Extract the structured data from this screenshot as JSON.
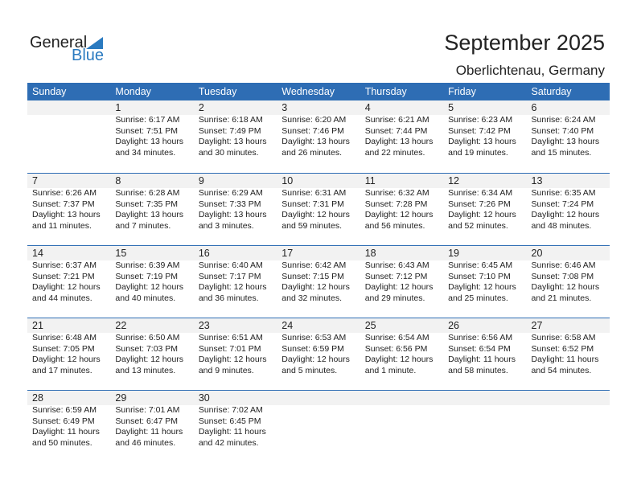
{
  "logo": {
    "general": "General",
    "blue": "Blue"
  },
  "header": {
    "title": "September 2025",
    "location": "Oberlichtenau, Germany"
  },
  "weekdays": [
    "Sunday",
    "Monday",
    "Tuesday",
    "Wednesday",
    "Thursday",
    "Friday",
    "Saturday"
  ],
  "colors": {
    "header_bg": "#2e6db4",
    "brand_blue": "#2a7ac0",
    "date_band": "#f2f2f2"
  },
  "weeks": [
    [
      null,
      {
        "day": "1",
        "sunrise": "Sunrise: 6:17 AM",
        "sunset": "Sunset: 7:51 PM",
        "daylight1": "Daylight: 13 hours",
        "daylight2": "and 34 minutes."
      },
      {
        "day": "2",
        "sunrise": "Sunrise: 6:18 AM",
        "sunset": "Sunset: 7:49 PM",
        "daylight1": "Daylight: 13 hours",
        "daylight2": "and 30 minutes."
      },
      {
        "day": "3",
        "sunrise": "Sunrise: 6:20 AM",
        "sunset": "Sunset: 7:46 PM",
        "daylight1": "Daylight: 13 hours",
        "daylight2": "and 26 minutes."
      },
      {
        "day": "4",
        "sunrise": "Sunrise: 6:21 AM",
        "sunset": "Sunset: 7:44 PM",
        "daylight1": "Daylight: 13 hours",
        "daylight2": "and 22 minutes."
      },
      {
        "day": "5",
        "sunrise": "Sunrise: 6:23 AM",
        "sunset": "Sunset: 7:42 PM",
        "daylight1": "Daylight: 13 hours",
        "daylight2": "and 19 minutes."
      },
      {
        "day": "6",
        "sunrise": "Sunrise: 6:24 AM",
        "sunset": "Sunset: 7:40 PM",
        "daylight1": "Daylight: 13 hours",
        "daylight2": "and 15 minutes."
      }
    ],
    [
      {
        "day": "7",
        "sunrise": "Sunrise: 6:26 AM",
        "sunset": "Sunset: 7:37 PM",
        "daylight1": "Daylight: 13 hours",
        "daylight2": "and 11 minutes."
      },
      {
        "day": "8",
        "sunrise": "Sunrise: 6:28 AM",
        "sunset": "Sunset: 7:35 PM",
        "daylight1": "Daylight: 13 hours",
        "daylight2": "and 7 minutes."
      },
      {
        "day": "9",
        "sunrise": "Sunrise: 6:29 AM",
        "sunset": "Sunset: 7:33 PM",
        "daylight1": "Daylight: 13 hours",
        "daylight2": "and 3 minutes."
      },
      {
        "day": "10",
        "sunrise": "Sunrise: 6:31 AM",
        "sunset": "Sunset: 7:31 PM",
        "daylight1": "Daylight: 12 hours",
        "daylight2": "and 59 minutes."
      },
      {
        "day": "11",
        "sunrise": "Sunrise: 6:32 AM",
        "sunset": "Sunset: 7:28 PM",
        "daylight1": "Daylight: 12 hours",
        "daylight2": "and 56 minutes."
      },
      {
        "day": "12",
        "sunrise": "Sunrise: 6:34 AM",
        "sunset": "Sunset: 7:26 PM",
        "daylight1": "Daylight: 12 hours",
        "daylight2": "and 52 minutes."
      },
      {
        "day": "13",
        "sunrise": "Sunrise: 6:35 AM",
        "sunset": "Sunset: 7:24 PM",
        "daylight1": "Daylight: 12 hours",
        "daylight2": "and 48 minutes."
      }
    ],
    [
      {
        "day": "14",
        "sunrise": "Sunrise: 6:37 AM",
        "sunset": "Sunset: 7:21 PM",
        "daylight1": "Daylight: 12 hours",
        "daylight2": "and 44 minutes."
      },
      {
        "day": "15",
        "sunrise": "Sunrise: 6:39 AM",
        "sunset": "Sunset: 7:19 PM",
        "daylight1": "Daylight: 12 hours",
        "daylight2": "and 40 minutes."
      },
      {
        "day": "16",
        "sunrise": "Sunrise: 6:40 AM",
        "sunset": "Sunset: 7:17 PM",
        "daylight1": "Daylight: 12 hours",
        "daylight2": "and 36 minutes."
      },
      {
        "day": "17",
        "sunrise": "Sunrise: 6:42 AM",
        "sunset": "Sunset: 7:15 PM",
        "daylight1": "Daylight: 12 hours",
        "daylight2": "and 32 minutes."
      },
      {
        "day": "18",
        "sunrise": "Sunrise: 6:43 AM",
        "sunset": "Sunset: 7:12 PM",
        "daylight1": "Daylight: 12 hours",
        "daylight2": "and 29 minutes."
      },
      {
        "day": "19",
        "sunrise": "Sunrise: 6:45 AM",
        "sunset": "Sunset: 7:10 PM",
        "daylight1": "Daylight: 12 hours",
        "daylight2": "and 25 minutes."
      },
      {
        "day": "20",
        "sunrise": "Sunrise: 6:46 AM",
        "sunset": "Sunset: 7:08 PM",
        "daylight1": "Daylight: 12 hours",
        "daylight2": "and 21 minutes."
      }
    ],
    [
      {
        "day": "21",
        "sunrise": "Sunrise: 6:48 AM",
        "sunset": "Sunset: 7:05 PM",
        "daylight1": "Daylight: 12 hours",
        "daylight2": "and 17 minutes."
      },
      {
        "day": "22",
        "sunrise": "Sunrise: 6:50 AM",
        "sunset": "Sunset: 7:03 PM",
        "daylight1": "Daylight: 12 hours",
        "daylight2": "and 13 minutes."
      },
      {
        "day": "23",
        "sunrise": "Sunrise: 6:51 AM",
        "sunset": "Sunset: 7:01 PM",
        "daylight1": "Daylight: 12 hours",
        "daylight2": "and 9 minutes."
      },
      {
        "day": "24",
        "sunrise": "Sunrise: 6:53 AM",
        "sunset": "Sunset: 6:59 PM",
        "daylight1": "Daylight: 12 hours",
        "daylight2": "and 5 minutes."
      },
      {
        "day": "25",
        "sunrise": "Sunrise: 6:54 AM",
        "sunset": "Sunset: 6:56 PM",
        "daylight1": "Daylight: 12 hours",
        "daylight2": "and 1 minute."
      },
      {
        "day": "26",
        "sunrise": "Sunrise: 6:56 AM",
        "sunset": "Sunset: 6:54 PM",
        "daylight1": "Daylight: 11 hours",
        "daylight2": "and 58 minutes."
      },
      {
        "day": "27",
        "sunrise": "Sunrise: 6:58 AM",
        "sunset": "Sunset: 6:52 PM",
        "daylight1": "Daylight: 11 hours",
        "daylight2": "and 54 minutes."
      }
    ],
    [
      {
        "day": "28",
        "sunrise": "Sunrise: 6:59 AM",
        "sunset": "Sunset: 6:49 PM",
        "daylight1": "Daylight: 11 hours",
        "daylight2": "and 50 minutes."
      },
      {
        "day": "29",
        "sunrise": "Sunrise: 7:01 AM",
        "sunset": "Sunset: 6:47 PM",
        "daylight1": "Daylight: 11 hours",
        "daylight2": "and 46 minutes."
      },
      {
        "day": "30",
        "sunrise": "Sunrise: 7:02 AM",
        "sunset": "Sunset: 6:45 PM",
        "daylight1": "Daylight: 11 hours",
        "daylight2": "and 42 minutes."
      },
      null,
      null,
      null,
      null
    ]
  ]
}
